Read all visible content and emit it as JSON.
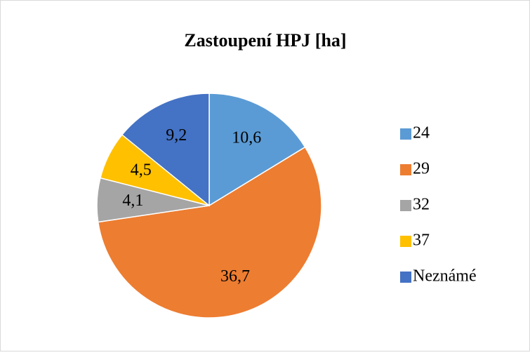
{
  "chart_data": {
    "type": "pie",
    "title": "Zastoupení HPJ [ha]",
    "categories": [
      "24",
      "29",
      "32",
      "37",
      "Neznámé"
    ],
    "values": [
      10.6,
      36.7,
      4.1,
      4.5,
      9.2
    ],
    "value_labels": [
      "10,6",
      "36,7",
      "4,1",
      "4,5",
      "9,2"
    ],
    "colors": [
      "#5B9BD5",
      "#ED7D31",
      "#A5A5A5",
      "#FFC000",
      "#4472C4"
    ],
    "legend": "right"
  }
}
